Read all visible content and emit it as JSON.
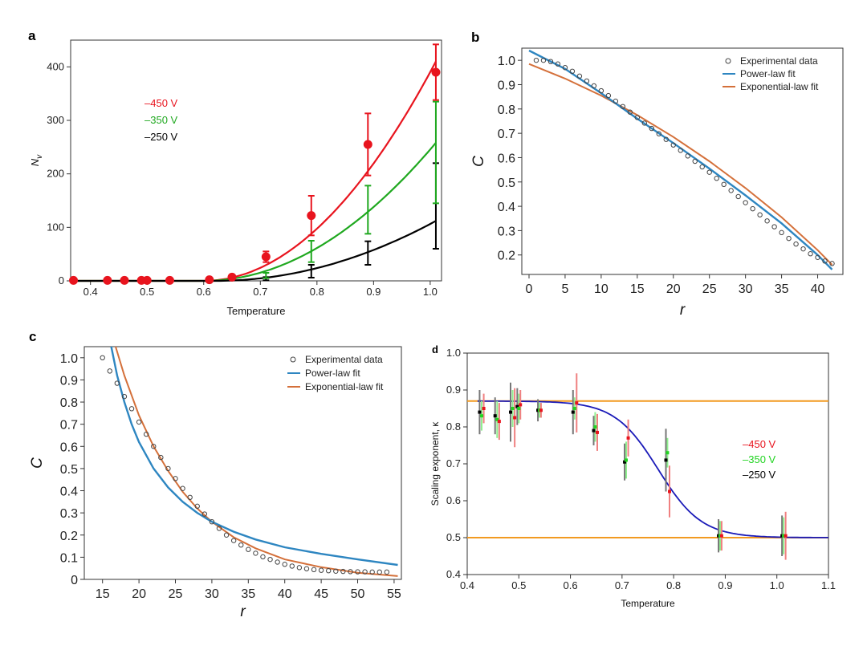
{
  "chart_data": [
    {
      "panel": "a",
      "type": "line",
      "xlabel": "Temperature",
      "ylabel": "N",
      "ylabel_sub": "v",
      "xlim": [
        0.365,
        1.02
      ],
      "ylim": [
        0,
        450
      ],
      "xticks": [
        0.4,
        0.5,
        0.6,
        0.7,
        0.8,
        0.9,
        1.0
      ],
      "xtick_labels": [
        "0.4",
        "0.5",
        "0.6",
        "0.7",
        "0.8",
        "0.9",
        "1.0"
      ],
      "yticks": [
        0,
        100,
        200,
        300,
        400
      ],
      "ytick_labels": [
        "0",
        "100",
        "200",
        "300",
        "400"
      ],
      "legend": [
        {
          "label": "–450 V",
          "color": "#e8141e"
        },
        {
          "label": "–350 V",
          "color": "#1fa81f"
        },
        {
          "label": "–250 V",
          "color": "#000000"
        }
      ],
      "series": [
        {
          "name": "–450 V",
          "color": "#e8141e",
          "fit": {
            "x0": 0.6,
            "x_end": 1.01,
            "amp": 410
          },
          "points": [
            {
              "x": 0.37,
              "y": 1
            },
            {
              "x": 0.43,
              "y": 1
            },
            {
              "x": 0.46,
              "y": 1
            },
            {
              "x": 0.49,
              "y": 1
            },
            {
              "x": 0.5,
              "y": 1
            },
            {
              "x": 0.54,
              "y": 1
            },
            {
              "x": 0.61,
              "y": 2
            },
            {
              "x": 0.65,
              "y": 7
            },
            {
              "x": 0.71,
              "y": 45,
              "err": 10
            },
            {
              "x": 0.79,
              "y": 122,
              "err": 37
            },
            {
              "x": 0.89,
              "y": 255,
              "err": 58
            },
            {
              "x": 1.01,
              "y": 390,
              "err": 52
            }
          ]
        },
        {
          "name": "–350 V",
          "color": "#1fa81f",
          "fit": {
            "x0": 0.6,
            "x_end": 1.01,
            "amp": 258
          },
          "points": [
            {
              "x": 0.71,
              "y": 10,
              "err": 5
            },
            {
              "x": 0.79,
              "y": 55,
              "err": 20
            },
            {
              "x": 0.89,
              "y": 133,
              "err": 45
            },
            {
              "x": 1.01,
              "y": 240,
              "err": 95
            }
          ]
        },
        {
          "name": "–250 V",
          "color": "#000000",
          "fit": {
            "x0": 0.62,
            "x_end": 1.01,
            "amp": 112
          },
          "points": [
            {
              "x": 0.71,
              "y": 4,
              "err": 3
            },
            {
              "x": 0.79,
              "y": 18,
              "err": 12
            },
            {
              "x": 0.89,
              "y": 52,
              "err": 22
            },
            {
              "x": 1.01,
              "y": 140,
              "err": 80
            }
          ]
        }
      ]
    },
    {
      "panel": "b",
      "type": "scatter",
      "xlabel": "r",
      "ylabel": "C",
      "xlim": [
        -1,
        43.5
      ],
      "ylim": [
        0.12,
        1.05
      ],
      "xticks": [
        0,
        5,
        10,
        15,
        20,
        25,
        30,
        35,
        40
      ],
      "xtick_labels": [
        "0",
        "5",
        "10",
        "15",
        "20",
        "25",
        "30",
        "35",
        "40"
      ],
      "yticks": [
        0.2,
        0.3,
        0.4,
        0.5,
        0.6,
        0.7,
        0.8,
        0.9,
        1.0
      ],
      "ytick_labels": [
        "0.2",
        "0.3",
        "0.4",
        "0.5",
        "0.6",
        "0.7",
        "0.8",
        "0.9",
        "1.0"
      ],
      "legend": [
        {
          "label": "Experimental data",
          "kind": "marker"
        },
        {
          "label": "Power-law fit",
          "color": "#2e86c1"
        },
        {
          "label": "Exponential-law fit",
          "color": "#d4703a"
        }
      ],
      "experimental": {
        "x": [
          1,
          2,
          3,
          4,
          5,
          6,
          7,
          8,
          9,
          10,
          11,
          12,
          13,
          14,
          15,
          16,
          17,
          18,
          19,
          20,
          21,
          22,
          23,
          24,
          25,
          26,
          27,
          28,
          29,
          30,
          31,
          32,
          33,
          34,
          35,
          36,
          37,
          38,
          39,
          40,
          41,
          42
        ],
        "y": [
          1.0,
          1.0,
          0.995,
          0.985,
          0.97,
          0.955,
          0.935,
          0.915,
          0.895,
          0.875,
          0.855,
          0.832,
          0.81,
          0.787,
          0.765,
          0.742,
          0.72,
          0.698,
          0.675,
          0.652,
          0.63,
          0.607,
          0.585,
          0.562,
          0.54,
          0.515,
          0.49,
          0.465,
          0.44,
          0.415,
          0.39,
          0.365,
          0.34,
          0.316,
          0.292,
          0.268,
          0.245,
          0.225,
          0.205,
          0.19,
          0.175,
          0.165
        ]
      },
      "power_fit": {
        "x": [
          0,
          5,
          10,
          15,
          20,
          25,
          30,
          35,
          40,
          42
        ],
        "y": [
          1.04,
          0.965,
          0.865,
          0.76,
          0.66,
          0.555,
          0.445,
          0.33,
          0.2,
          0.14
        ]
      },
      "exp_fit": {
        "x": [
          0,
          5,
          10,
          15,
          20,
          25,
          30,
          35,
          40,
          42
        ],
        "y": [
          0.985,
          0.925,
          0.855,
          0.775,
          0.685,
          0.585,
          0.475,
          0.355,
          0.22,
          0.16
        ]
      }
    },
    {
      "panel": "c",
      "type": "scatter",
      "xlabel": "r",
      "ylabel": "C",
      "xlim": [
        12.5,
        56
      ],
      "ylim": [
        0,
        1.05
      ],
      "xticks": [
        15,
        20,
        25,
        30,
        35,
        40,
        45,
        50,
        55
      ],
      "xtick_labels": [
        "15",
        "20",
        "25",
        "30",
        "35",
        "40",
        "45",
        "50",
        "55"
      ],
      "yticks": [
        0,
        0.1,
        0.2,
        0.3,
        0.4,
        0.5,
        0.6,
        0.7,
        0.8,
        0.9,
        1.0
      ],
      "ytick_labels": [
        "0",
        "0.1",
        "0.2",
        "0.3",
        "0.4",
        "0.5",
        "0.6",
        "0.7",
        "0.8",
        "0.9",
        "1.0"
      ],
      "legend": [
        {
          "label": "Experimental data",
          "kind": "marker"
        },
        {
          "label": "Power-law fit",
          "color": "#2e86c1"
        },
        {
          "label": "Exponential-law fit",
          "color": "#d4703a"
        }
      ],
      "experimental": {
        "x": [
          15,
          16,
          17,
          18,
          19,
          20,
          21,
          22,
          23,
          24,
          25,
          26,
          27,
          28,
          29,
          30,
          31,
          32,
          33,
          34,
          35,
          36,
          37,
          38,
          39,
          40,
          41,
          42,
          43,
          44,
          45,
          46,
          47,
          48,
          49,
          50,
          51,
          52,
          53,
          54
        ],
        "y": [
          1.0,
          0.94,
          0.885,
          0.825,
          0.77,
          0.71,
          0.655,
          0.6,
          0.55,
          0.5,
          0.455,
          0.41,
          0.37,
          0.33,
          0.295,
          0.26,
          0.23,
          0.2,
          0.175,
          0.155,
          0.135,
          0.118,
          0.102,
          0.09,
          0.078,
          0.068,
          0.06,
          0.053,
          0.048,
          0.044,
          0.041,
          0.039,
          0.037,
          0.036,
          0.035,
          0.034,
          0.034,
          0.033,
          0.033,
          0.033
        ]
      },
      "power_fit": {
        "x": [
          16.2,
          17,
          18,
          19,
          20,
          22,
          24,
          26,
          28,
          30,
          33,
          36,
          40,
          45,
          50,
          55.5
        ],
        "y": [
          1.05,
          0.92,
          0.8,
          0.7,
          0.62,
          0.5,
          0.415,
          0.35,
          0.3,
          0.26,
          0.215,
          0.18,
          0.145,
          0.115,
          0.09,
          0.065
        ]
      },
      "exp_fit": {
        "x": [
          16.8,
          18,
          20,
          22,
          24,
          26,
          28,
          30,
          33,
          36,
          40,
          45,
          50,
          55.5
        ],
        "y": [
          1.05,
          0.92,
          0.74,
          0.6,
          0.49,
          0.395,
          0.32,
          0.26,
          0.19,
          0.14,
          0.09,
          0.055,
          0.03,
          0.015
        ]
      }
    },
    {
      "panel": "d",
      "type": "scatter",
      "xlabel": "Temperature",
      "ylabel": "Scaling exponent, κ",
      "xlim": [
        0.4,
        1.1
      ],
      "ylim": [
        0.4,
        1.0
      ],
      "xticks": [
        0.4,
        0.5,
        0.6,
        0.7,
        0.8,
        0.9,
        1.0,
        1.1
      ],
      "xtick_labels": [
        "0.4",
        "0.5",
        "0.6",
        "0.7",
        "0.8",
        "0.9",
        "1.0",
        "1.1"
      ],
      "yticks": [
        0.4,
        0.5,
        0.6,
        0.7,
        0.8,
        0.9,
        1.0
      ],
      "ytick_labels": [
        "0.4",
        "0.5",
        "0.6",
        "0.7",
        "0.8",
        "0.9",
        "1.0"
      ],
      "hlines": [
        {
          "y": 0.87,
          "color": "#f29a21"
        },
        {
          "y": 0.5,
          "color": "#f29a21"
        }
      ],
      "fit": {
        "color": "#1a1ab8",
        "high": 0.87,
        "low": 0.5,
        "x_mid": 0.77,
        "width": 0.042
      },
      "legend": [
        {
          "label": "–450 V",
          "color": "#e8141e"
        },
        {
          "label": "–350 V",
          "color": "#22d422"
        },
        {
          "label": "–250 V",
          "color": "#000000"
        }
      ],
      "series": [
        {
          "name": "–450 V",
          "color": "#e8141e",
          "points": [
            {
              "x": 0.432,
              "y": 0.85,
              "err": 0.04
            },
            {
              "x": 0.462,
              "y": 0.815,
              "err": 0.05
            },
            {
              "x": 0.492,
              "y": 0.825,
              "err": 0.08
            },
            {
              "x": 0.503,
              "y": 0.86,
              "err": 0.04
            },
            {
              "x": 0.543,
              "y": 0.845,
              "err": 0.02
            },
            {
              "x": 0.612,
              "y": 0.865,
              "err": 0.08
            },
            {
              "x": 0.652,
              "y": 0.785,
              "err": 0.05
            },
            {
              "x": 0.712,
              "y": 0.77,
              "err": 0.05
            },
            {
              "x": 0.792,
              "y": 0.625,
              "err": 0.07
            },
            {
              "x": 0.893,
              "y": 0.505,
              "err": 0.04
            },
            {
              "x": 1.017,
              "y": 0.505,
              "err": 0.065
            }
          ]
        },
        {
          "name": "–350 V",
          "color": "#22d422",
          "points": [
            {
              "x": 0.428,
              "y": 0.83,
              "err": 0.04
            },
            {
              "x": 0.458,
              "y": 0.82,
              "err": 0.05
            },
            {
              "x": 0.488,
              "y": 0.85,
              "err": 0.05
            },
            {
              "x": 0.5,
              "y": 0.85,
              "err": 0.04
            },
            {
              "x": 0.54,
              "y": 0.845,
              "err": 0.02
            },
            {
              "x": 0.608,
              "y": 0.85,
              "err": 0.03
            },
            {
              "x": 0.648,
              "y": 0.8,
              "err": 0.04
            },
            {
              "x": 0.708,
              "y": 0.71,
              "err": 0.05
            },
            {
              "x": 0.788,
              "y": 0.73,
              "err": 0.04
            },
            {
              "x": 0.89,
              "y": 0.505,
              "err": 0.04
            },
            {
              "x": 1.013,
              "y": 0.505,
              "err": 0.05
            }
          ]
        },
        {
          "name": "–250 V",
          "color": "#000000",
          "points": [
            {
              "x": 0.424,
              "y": 0.84,
              "err": 0.06
            },
            {
              "x": 0.454,
              "y": 0.83,
              "err": 0.05
            },
            {
              "x": 0.484,
              "y": 0.84,
              "err": 0.08
            },
            {
              "x": 0.497,
              "y": 0.855,
              "err": 0.05
            },
            {
              "x": 0.537,
              "y": 0.845,
              "err": 0.03
            },
            {
              "x": 0.605,
              "y": 0.84,
              "err": 0.06
            },
            {
              "x": 0.645,
              "y": 0.79,
              "err": 0.04
            },
            {
              "x": 0.705,
              "y": 0.705,
              "err": 0.05
            },
            {
              "x": 0.785,
              "y": 0.71,
              "err": 0.085
            },
            {
              "x": 0.887,
              "y": 0.505,
              "err": 0.045
            },
            {
              "x": 1.01,
              "y": 0.505,
              "err": 0.055
            }
          ]
        }
      ]
    }
  ]
}
